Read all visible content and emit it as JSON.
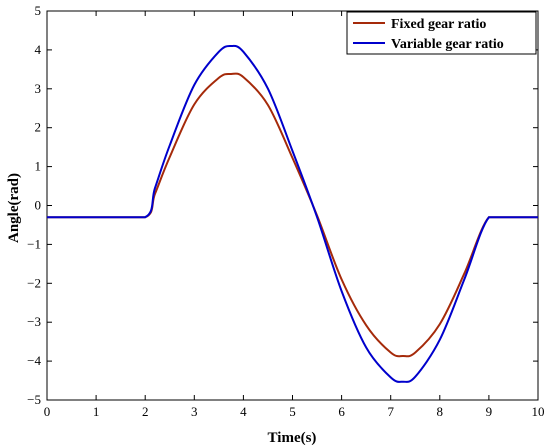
{
  "chart_data": {
    "type": "line",
    "xlabel": "Time(s)",
    "ylabel": "Angle(rad)",
    "xlim": [
      0,
      10
    ],
    "ylim": [
      -5,
      5
    ],
    "xticks": [
      0,
      1,
      2,
      3,
      4,
      5,
      6,
      7,
      8,
      9,
      10
    ],
    "yticks": [
      5,
      4,
      3,
      2,
      1,
      0,
      -1,
      -2,
      -3,
      -4,
      -5
    ],
    "ytick_labels": [
      "5",
      "4",
      "3",
      "2",
      "1",
      "0",
      "−1",
      "−2",
      "−3",
      "−4",
      "−5"
    ],
    "grid": false,
    "legend_position": "top-right",
    "series": [
      {
        "name": "Fixed gear ratio",
        "color": "#a52a0a",
        "x": [
          0,
          1,
          2,
          2.2,
          2.5,
          3.0,
          3.5,
          3.75,
          4.0,
          4.5,
          5.0,
          5.5,
          6.0,
          6.5,
          7.0,
          7.25,
          7.5,
          8.0,
          8.5,
          9.0,
          9.5,
          10
        ],
        "y": [
          -0.3,
          -0.3,
          -0.3,
          0.3,
          1.25,
          2.6,
          3.28,
          3.38,
          3.3,
          2.58,
          1.22,
          -0.26,
          -1.9,
          -3.08,
          -3.78,
          -3.87,
          -3.78,
          -3.05,
          -1.75,
          -0.3,
          -0.3,
          -0.3
        ]
      },
      {
        "name": "Variable gear ratio",
        "color": "#0000cc",
        "x": [
          0,
          1,
          2,
          2.2,
          2.5,
          3.0,
          3.5,
          3.75,
          4.0,
          4.5,
          5.0,
          5.5,
          6.0,
          6.5,
          7.0,
          7.25,
          7.5,
          8.0,
          8.5,
          9.0,
          9.5,
          10
        ],
        "y": [
          -0.3,
          -0.3,
          -0.3,
          0.45,
          1.55,
          3.1,
          3.95,
          4.1,
          3.95,
          3.0,
          1.4,
          -0.3,
          -2.2,
          -3.65,
          -4.42,
          -4.53,
          -4.4,
          -3.45,
          -1.9,
          -0.3,
          -0.3,
          -0.3
        ]
      }
    ]
  }
}
